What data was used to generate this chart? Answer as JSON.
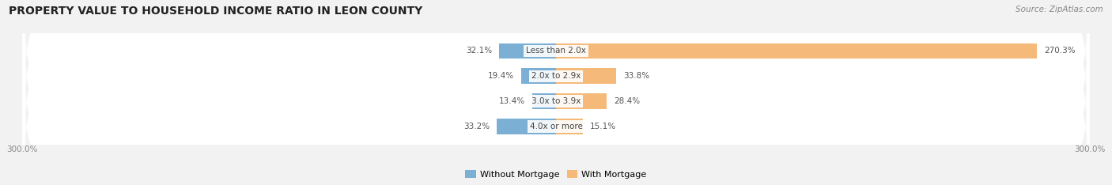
{
  "title": "PROPERTY VALUE TO HOUSEHOLD INCOME RATIO IN LEON COUNTY",
  "source": "Source: ZipAtlas.com",
  "categories": [
    "Less than 2.0x",
    "2.0x to 2.9x",
    "3.0x to 3.9x",
    "4.0x or more"
  ],
  "without_mortgage": [
    32.1,
    19.4,
    13.4,
    33.2
  ],
  "with_mortgage": [
    270.3,
    33.8,
    28.4,
    15.1
  ],
  "without_mortgage_color": "#7bafd4",
  "with_mortgage_color": "#f5ba7a",
  "axis_min": -300.0,
  "axis_max": 300.0,
  "axis_label_left": "300.0%",
  "axis_label_right": "300.0%",
  "background_color": "#f2f2f2",
  "row_bg_color": "#ebebeb",
  "title_fontsize": 10,
  "source_fontsize": 7.5,
  "legend_labels": [
    "Without Mortgage",
    "With Mortgage"
  ],
  "label_fontsize": 7.5,
  "value_fontsize": 7.5
}
